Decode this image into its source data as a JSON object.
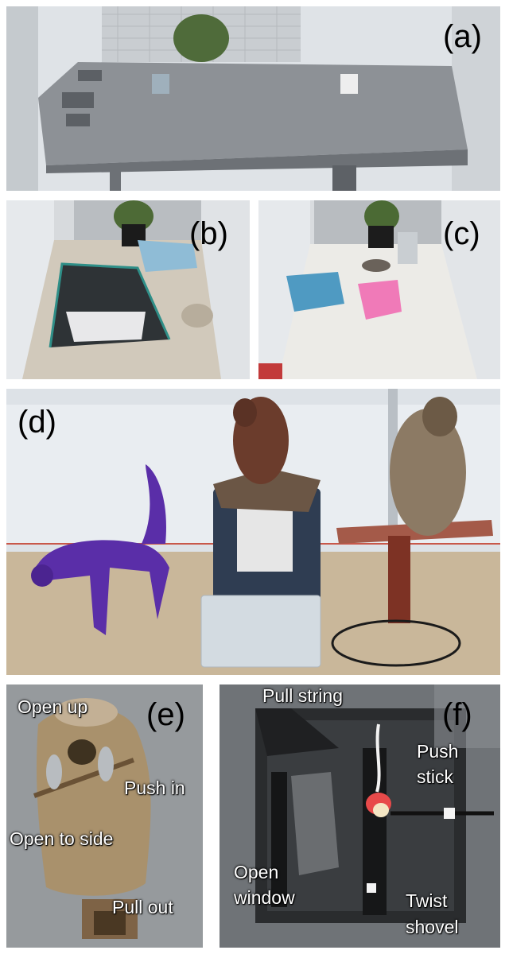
{
  "panels": {
    "a": {
      "label": "(a)"
    },
    "b": {
      "label": "(b)"
    },
    "c": {
      "label": "(c)"
    },
    "d": {
      "label": "(d)"
    },
    "e": {
      "label": "(e)",
      "annotations": {
        "open_up": "Open up",
        "push_in": "Push in",
        "open_to_side": "Open to side",
        "pull_out": "Pull out"
      }
    },
    "f": {
      "label": "(f)",
      "annotations": {
        "pull_string": "Pull string",
        "push_stick_line1": "Push",
        "push_stick_line2": "stick",
        "open_window_line1": "Open",
        "open_window_line2": "window",
        "twist_shovel_line1": "Twist",
        "twist_shovel_line2": "shovel"
      }
    }
  }
}
